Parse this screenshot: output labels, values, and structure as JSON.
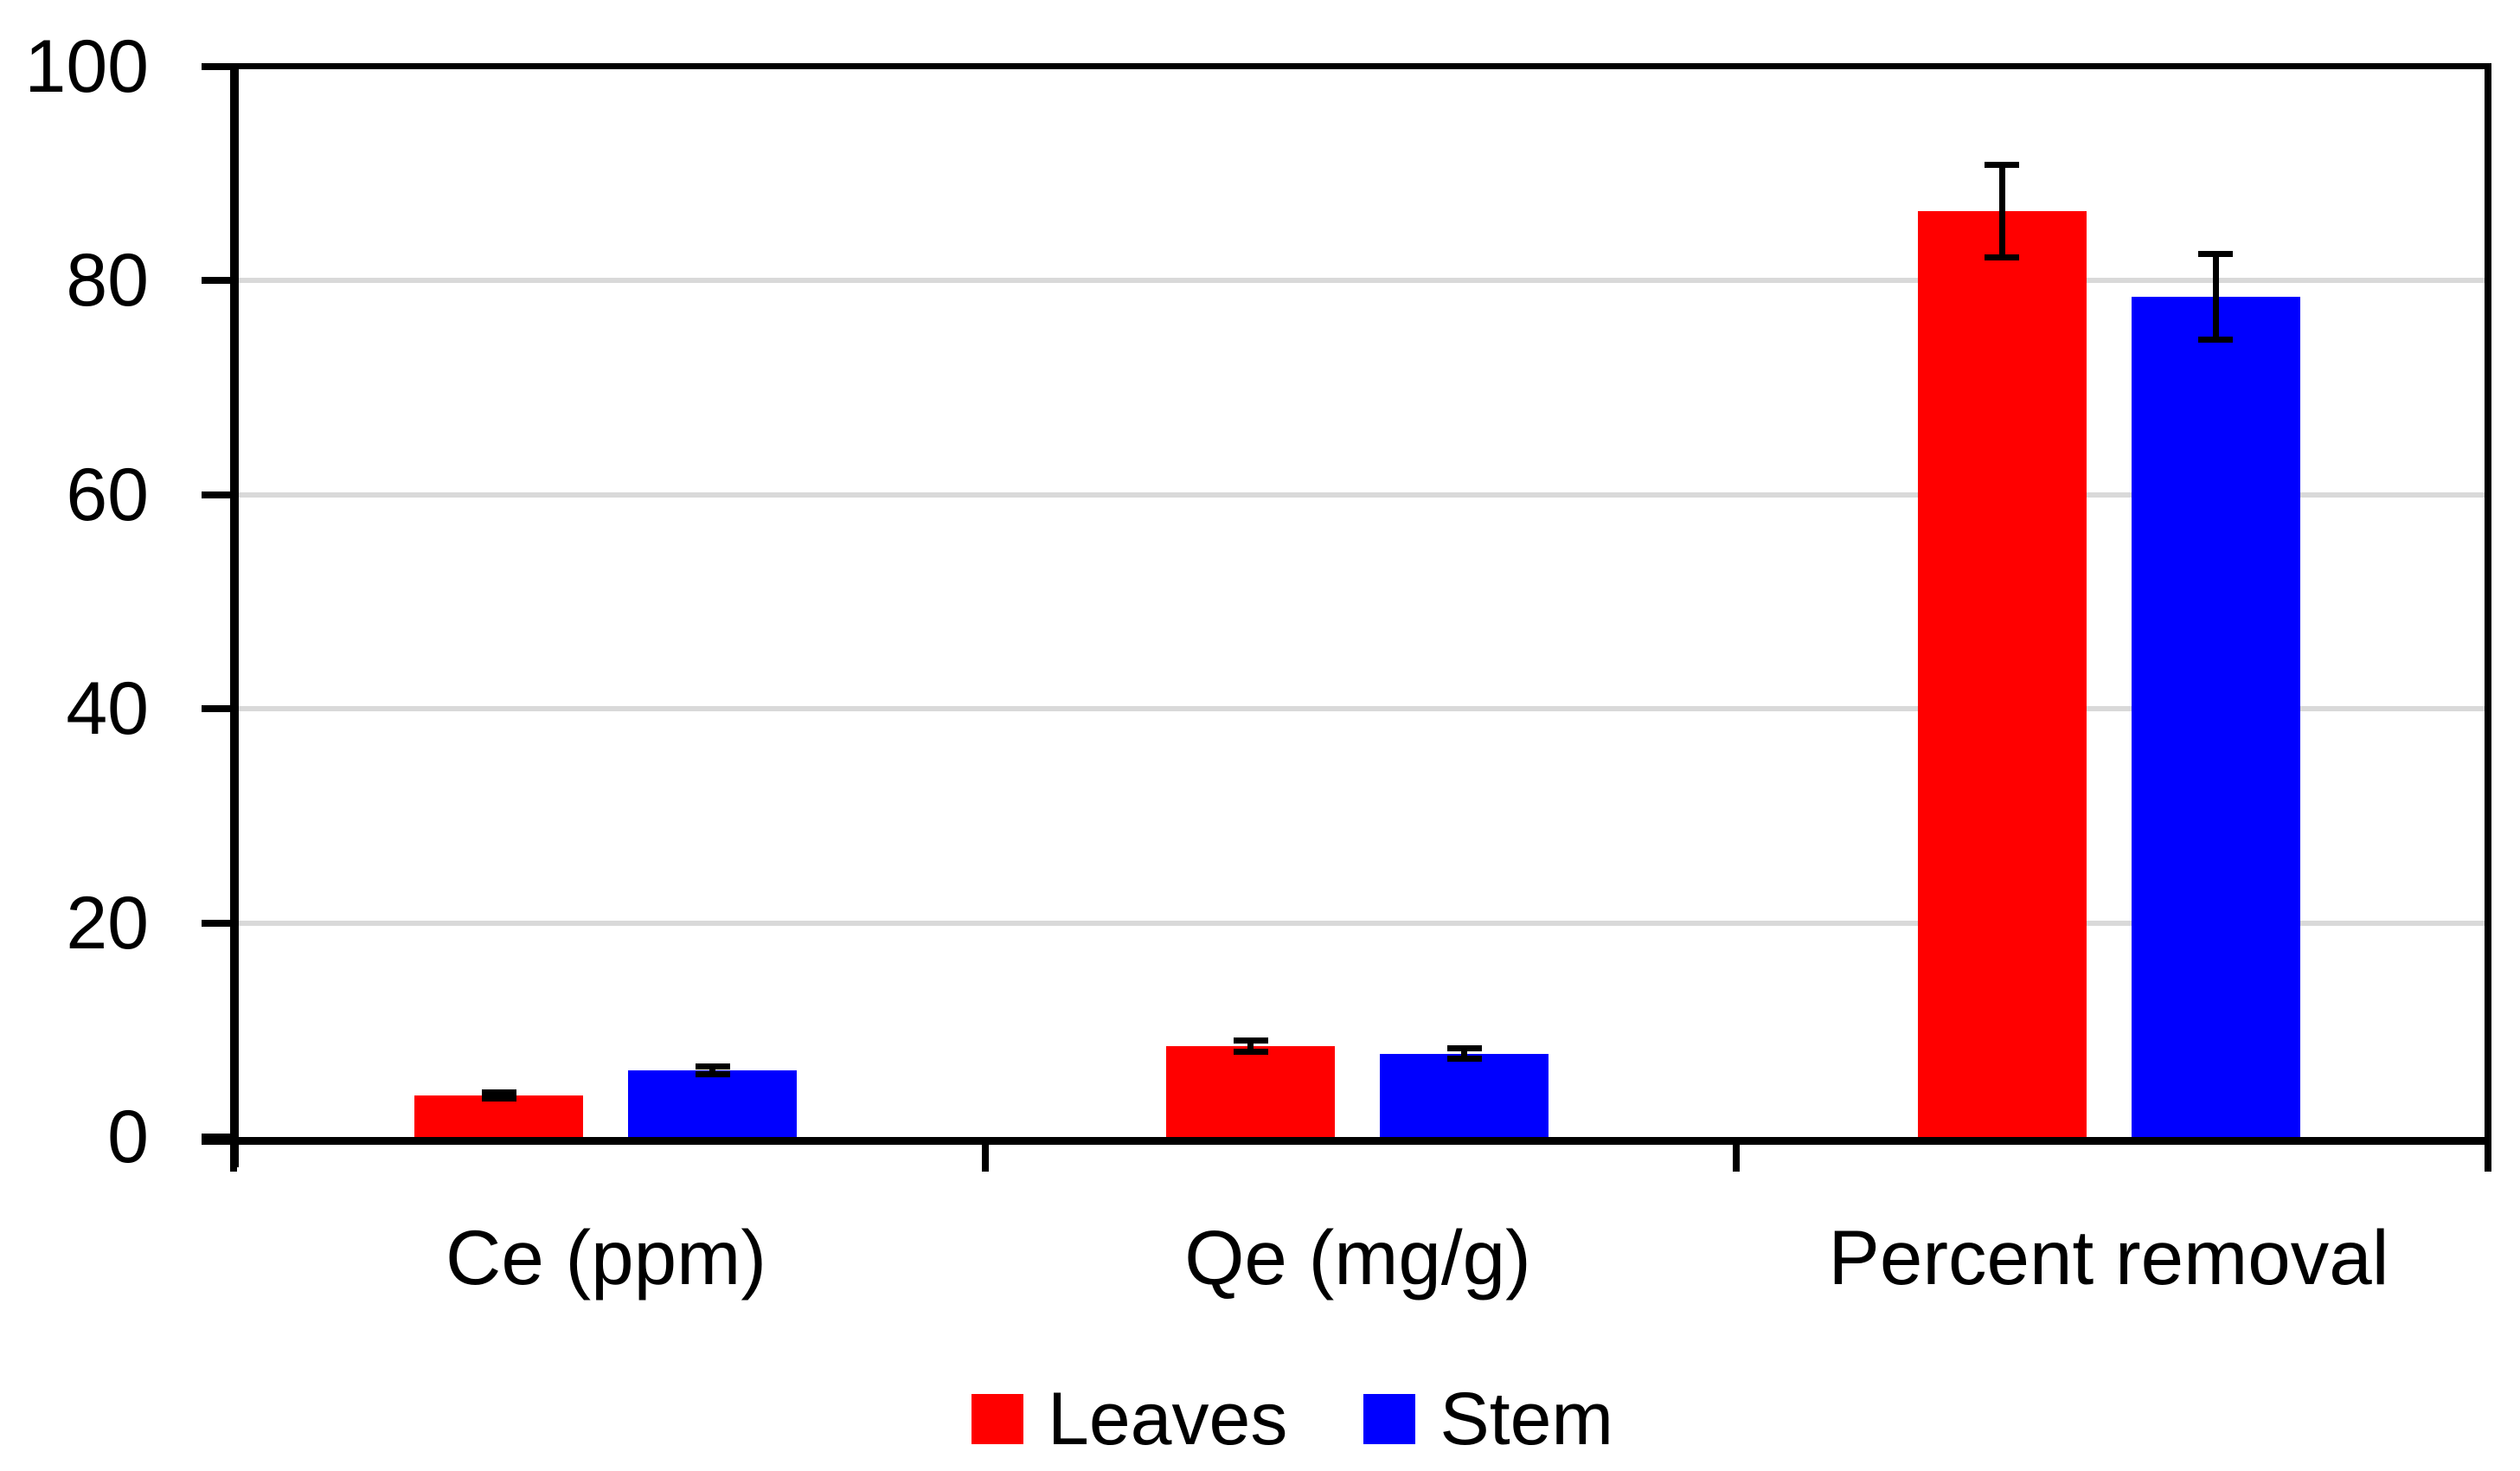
{
  "figure": {
    "background": "#FFFFFF",
    "plot_border_color": "#000000"
  },
  "chart_data": {
    "type": "bar",
    "title": "",
    "xlabel": "",
    "ylabel": "",
    "categories": [
      "Ce (ppm)",
      "Qe (mg/g)",
      "Percent removal"
    ],
    "series": [
      {
        "name": "Leaves",
        "color": "#FF0000",
        "values": [
          3.9,
          8.5,
          86.5
        ],
        "errors": [
          0.3,
          0.5,
          4.3
        ]
      },
      {
        "name": "Stem",
        "color": "#0000FF",
        "values": [
          6.2,
          7.8,
          78.5
        ],
        "errors": [
          0.35,
          0.45,
          4.0
        ]
      }
    ],
    "error_bars": true,
    "error_bar_color": "#000000",
    "ylim": [
      0,
      100
    ],
    "yticks": [
      "0",
      "20",
      "40",
      "60",
      "80",
      "100"
    ],
    "ytick_values": [
      0,
      20,
      40,
      60,
      80,
      100
    ],
    "grid": true,
    "gridline_color": "#D9D9D9",
    "axis_color": "#000000",
    "legend_position": "bottom",
    "legend": [
      "Leaves",
      "Stem"
    ]
  }
}
